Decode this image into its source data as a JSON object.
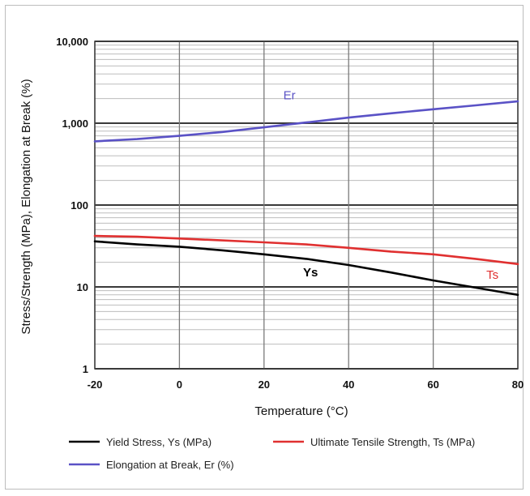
{
  "chart_data": {
    "type": "line",
    "title": "",
    "xlabel": "Temperature (°C)",
    "ylabel": "Stress/Strength (MPa), Elongation at Break (%)",
    "x_scale": "linear",
    "y_scale": "log",
    "xlim": [
      -20,
      80
    ],
    "ylim": [
      1,
      10000
    ],
    "x_ticks": [
      -20,
      0,
      20,
      40,
      60,
      80
    ],
    "x_tick_labels": [
      "-20",
      "0",
      "20",
      "40",
      "60",
      "80"
    ],
    "y_ticks": [
      1,
      10,
      100,
      1000,
      10000
    ],
    "y_tick_labels": [
      "1",
      "10",
      "100",
      "1,000",
      "10,000"
    ],
    "grid": true,
    "legend_position": "bottom",
    "series": [
      {
        "name": "Yield Stress, Ys (MPa)",
        "label": "Ys",
        "color": "#000000",
        "x": [
          -20,
          -10,
          0,
          10,
          20,
          30,
          40,
          50,
          60,
          70,
          80
        ],
        "y": [
          36,
          33,
          31,
          28,
          25,
          22,
          18.5,
          15,
          12,
          9.8,
          8
        ]
      },
      {
        "name": "Ultimate Tensile Strength, Ts (MPa)",
        "label": "Ts",
        "color": "#e03030",
        "x": [
          -20,
          -10,
          0,
          10,
          20,
          30,
          40,
          50,
          60,
          70,
          80
        ],
        "y": [
          42,
          41,
          39,
          37,
          35,
          33,
          30,
          27,
          25,
          22,
          19
        ]
      },
      {
        "name": "Elongation at Break, Er (%)",
        "label": "Er",
        "color": "#5a52c6",
        "x": [
          -20,
          -10,
          0,
          10,
          20,
          30,
          40,
          50,
          60,
          70,
          80
        ],
        "y": [
          600,
          640,
          700,
          780,
          890,
          1020,
          1170,
          1320,
          1480,
          1650,
          1850
        ]
      }
    ]
  }
}
